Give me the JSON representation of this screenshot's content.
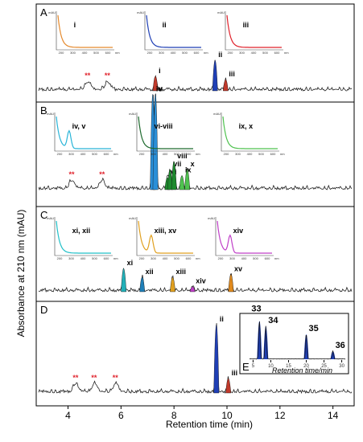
{
  "chart_data": {
    "type": "line",
    "xlabel": "Retention time (min)",
    "ylabel": "Absorbance at 210 nm (mAU)",
    "xlim": [
      2.8,
      14.8
    ],
    "x_ticks": [
      "4",
      "6",
      "8",
      "10",
      "12",
      "14"
    ],
    "panels": [
      {
        "label": "A",
        "peaks": [
          {
            "label": "i",
            "x": 7.3,
            "h": 0.18,
            "color": "#c0392b"
          },
          {
            "label": "ii",
            "x": 9.55,
            "h": 0.38,
            "color": "#1f3fb5"
          },
          {
            "label": "iii",
            "x": 9.95,
            "h": 0.14,
            "color": "#c0392b"
          }
        ],
        "stars": [
          {
            "text": "**",
            "x": 4.75
          },
          {
            "text": "**",
            "x": 5.5
          }
        ],
        "insets": [
          {
            "label": "i",
            "color": "#e58a2e",
            "xticks": [
              "200",
              "300",
              "400",
              "500",
              "600"
            ],
            "unit": "nm",
            "ytick": "mAU"
          },
          {
            "label": "ii",
            "color": "#1f3fb5",
            "xticks": [
              "200",
              "300",
              "400",
              "500",
              "600"
            ],
            "unit": "nm",
            "ytick": "mAU"
          },
          {
            "label": "iii",
            "color": "#e0212b",
            "xticks": [
              "200",
              "300",
              "400",
              "500",
              "600"
            ],
            "unit": "nm",
            "ytick": "mAU"
          }
        ]
      },
      {
        "label": "B",
        "peaks": [
          {
            "label": "iv",
            "x": 7.2,
            "h": 0.95,
            "color": "#2a8fd8"
          },
          {
            "label": "v",
            "x": 7.3,
            "h": 0.95,
            "color": "#2a8fd8"
          },
          {
            "label": "vi",
            "x": 7.75,
            "h": 0.12,
            "color": "#1e8a2e"
          },
          {
            "label": "vii",
            "x": 7.85,
            "h": 0.2,
            "color": "#1e8a2e"
          },
          {
            "label": "viii",
            "x": 8.0,
            "h": 0.28,
            "color": "#1e8a2e"
          },
          {
            "label": "ix",
            "x": 8.3,
            "h": 0.14,
            "color": "#4fc24f"
          },
          {
            "label": "x",
            "x": 8.5,
            "h": 0.2,
            "color": "#4fc24f"
          }
        ],
        "stars": [
          {
            "text": "**",
            "x": 4.15
          },
          {
            "text": "**",
            "x": 5.3
          }
        ],
        "insets": [
          {
            "label": "iv, v",
            "color": "#2ab5d8",
            "xticks": [
              "200",
              "300",
              "400",
              "500",
              "600"
            ],
            "unit": "nm",
            "ytick": "mAU"
          },
          {
            "label": "vi-viii",
            "color": "#1e6a2e",
            "xticks": [
              "200",
              "300",
              "400",
              "500",
              "600"
            ],
            "unit": "nm",
            "ytick": "mAU"
          },
          {
            "label": "ix, x",
            "color": "#4fc24f",
            "xticks": [
              "200",
              "300",
              "400",
              "500",
              "600"
            ],
            "unit": "nm",
            "ytick": "mAU"
          }
        ]
      },
      {
        "label": "C",
        "peaks": [
          {
            "label": "xi",
            "x": 6.1,
            "h": 0.32,
            "color": "#22b0b8"
          },
          {
            "label": "xii",
            "x": 6.8,
            "h": 0.2,
            "color": "#1f7fb8"
          },
          {
            "label": "xiii",
            "x": 7.95,
            "h": 0.2,
            "color": "#e0a020"
          },
          {
            "label": "xiv",
            "x": 8.7,
            "h": 0.07,
            "color": "#c040c8"
          },
          {
            "label": "xv",
            "x": 10.15,
            "h": 0.24,
            "color": "#e08a1e"
          }
        ],
        "stars": [],
        "insets": [
          {
            "label": "xi, xii",
            "color": "#22c0c8",
            "xticks": [
              "200",
              "300",
              "400",
              "500",
              "600"
            ],
            "unit": "nm",
            "ytick": "mAU"
          },
          {
            "label": "xiii, xv",
            "color": "#e0a020",
            "xticks": [
              "200",
              "300",
              "400",
              "500",
              "600"
            ],
            "unit": "nm",
            "ytick": "mAU"
          },
          {
            "label": "xiv",
            "color": "#c040c8",
            "xticks": [
              "200",
              "300",
              "400",
              "500",
              "600"
            ],
            "unit": "nm",
            "ytick": "mAU"
          }
        ]
      },
      {
        "label": "D",
        "peaks": [
          {
            "label": "ii",
            "x": 9.6,
            "h": 0.85,
            "color": "#1f3fb5"
          },
          {
            "label": "iii",
            "x": 10.05,
            "h": 0.18,
            "color": "#c0392b"
          }
        ],
        "stars": [
          {
            "text": "**",
            "x": 4.3
          },
          {
            "text": "**",
            "x": 5.0
          },
          {
            "text": "**",
            "x": 5.8
          }
        ],
        "inset_label": "E",
        "inset_chart": {
          "xlabel": "Retention time/min",
          "x_ticks": [
            "5",
            "10",
            "15",
            "20",
            "25",
            "30"
          ],
          "xlim": [
            4,
            31
          ],
          "peaks": [
            {
              "label": "33",
              "x": 6.8,
              "h": 0.95
            },
            {
              "label": "34",
              "x": 8.6,
              "h": 0.82
            },
            {
              "label": "35",
              "x": 20.0,
              "h": 0.62
            },
            {
              "label": "36",
              "x": 27.5,
              "h": 0.2
            }
          ]
        }
      }
    ]
  }
}
